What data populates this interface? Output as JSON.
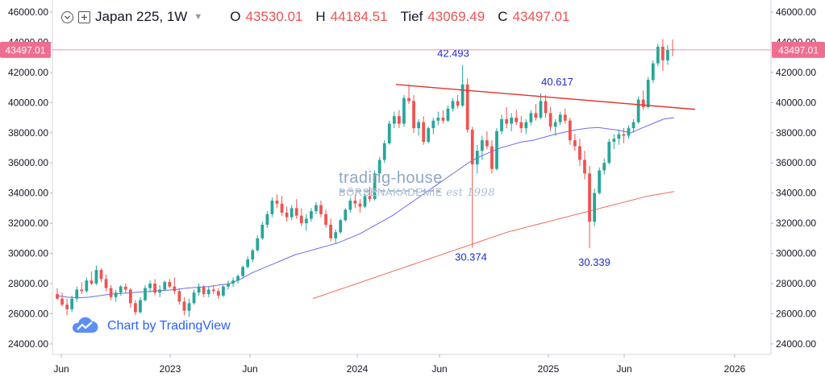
{
  "header": {
    "symbol": "Japan 225, 1W",
    "open_label": "O",
    "open": "43530.01",
    "high_label": "H",
    "high": "44184.51",
    "low_label": "Tief",
    "low": "43069.49",
    "close_label": "C",
    "close": "43497.01"
  },
  "branding": {
    "tv_text": "Chart by TradingView",
    "watermark_top": "trading-house",
    "watermark_bottom": "BÖRSENAKADEMIE",
    "watermark_est": "est 1998"
  },
  "colors": {
    "up": "#26a69a",
    "down": "#ef5350",
    "ma_short": "#6b6bf0",
    "ma_long": "#f06a5e",
    "trendline": "#e0342a",
    "annotation": "#1a2bd6",
    "price_tag": "#f06d90"
  },
  "chart_data": {
    "type": "candlestick",
    "price_tag": "43497.01",
    "y_ticks": [
      "46000.00",
      "44000.00",
      "42000.00",
      "40000.00",
      "38000.00",
      "36000.00",
      "34000.00",
      "32000.00",
      "30000.00",
      "28000.00",
      "26000.00",
      "24000.00"
    ],
    "ylim": [
      23300,
      46800
    ],
    "x_ticks": [
      "Jun",
      "2023",
      "Jun",
      "2024",
      "Jun",
      "2025",
      "Jun",
      "2026"
    ],
    "annotations": [
      {
        "label": "42.493",
        "value": 42493
      },
      {
        "label": "30.374",
        "value": 30374
      },
      {
        "label": "40.617",
        "value": 40617
      },
      {
        "label": "30.339",
        "value": 30339
      }
    ],
    "trendline": {
      "from": 41200,
      "to": 39550
    },
    "ma_short": [
      27200,
      27100,
      27050,
      27100,
      27200,
      27300,
      27350,
      27400,
      27450,
      27500,
      27550,
      27600,
      27700,
      27750,
      27800,
      27900,
      28000,
      28300,
      28700,
      29000,
      29300,
      29600,
      29900,
      30100,
      30300,
      30500,
      30700,
      31000,
      31300,
      31700,
      32100,
      32500,
      33000,
      33500,
      34000,
      34500,
      35000,
      35500,
      36000,
      36400,
      36700,
      37000,
      37200,
      37400,
      37500,
      37700,
      37900,
      38050,
      38200,
      38300,
      38350,
      38250,
      38150,
      38000,
      38300,
      38600,
      38900,
      39000
    ],
    "ma_long": [
      27000,
      27200,
      27400,
      27600,
      27800,
      28000,
      28200,
      28400,
      28600,
      28800,
      29000,
      29200,
      29400,
      29600,
      29800,
      30000,
      30200,
      30400,
      30600,
      30800,
      31000,
      31200,
      31400,
      31550,
      31700,
      31850,
      32000,
      32150,
      32300,
      32450,
      32600,
      32750,
      32900,
      33050,
      33200,
      33350,
      33500,
      33650,
      33800,
      33900,
      34000,
      34100
    ],
    "candles": [
      [
        27300,
        27700,
        26900,
        27000
      ],
      [
        27000,
        27400,
        26500,
        26600
      ],
      [
        26600,
        27000,
        25900,
        26300
      ],
      [
        26300,
        27200,
        26100,
        27000
      ],
      [
        27000,
        27800,
        26800,
        27600
      ],
      [
        27600,
        28100,
        27300,
        27500
      ],
      [
        27500,
        28400,
        27400,
        28200
      ],
      [
        28200,
        28800,
        27900,
        28000
      ],
      [
        28000,
        29200,
        27900,
        28900
      ],
      [
        28900,
        29000,
        28100,
        28300
      ],
      [
        28300,
        28600,
        27500,
        27700
      ],
      [
        27700,
        27900,
        26900,
        27100
      ],
      [
        27100,
        27600,
        26800,
        27400
      ],
      [
        27400,
        27900,
        27200,
        27800
      ],
      [
        27800,
        28000,
        27400,
        27600
      ],
      [
        27600,
        27700,
        26400,
        26700
      ],
      [
        26700,
        26900,
        25900,
        26100
      ],
      [
        26100,
        27100,
        26000,
        26900
      ],
      [
        26900,
        27900,
        26800,
        27700
      ],
      [
        27700,
        28200,
        27400,
        28000
      ],
      [
        28000,
        28300,
        27200,
        27400
      ],
      [
        27400,
        27900,
        27100,
        27600
      ],
      [
        27600,
        28200,
        27500,
        28100
      ],
      [
        28100,
        28300,
        27700,
        27800
      ],
      [
        27800,
        28400,
        27300,
        27500
      ],
      [
        27500,
        27700,
        26600,
        26800
      ],
      [
        26800,
        27100,
        25900,
        26200
      ],
      [
        26200,
        27000,
        25800,
        26700
      ],
      [
        26700,
        27600,
        26600,
        27400
      ],
      [
        27400,
        28000,
        27200,
        27800
      ],
      [
        27800,
        27900,
        27100,
        27300
      ],
      [
        27300,
        27800,
        27100,
        27600
      ],
      [
        27600,
        27900,
        27300,
        27500
      ],
      [
        27500,
        27700,
        27000,
        27200
      ],
      [
        27200,
        27900,
        27100,
        27800
      ],
      [
        27800,
        28200,
        27600,
        28000
      ],
      [
        28000,
        28400,
        27800,
        28200
      ],
      [
        28200,
        28600,
        28000,
        28500
      ],
      [
        28500,
        29200,
        28400,
        29100
      ],
      [
        29100,
        29800,
        29000,
        29600
      ],
      [
        29600,
        30300,
        29400,
        30200
      ],
      [
        30200,
        31200,
        30100,
        31000
      ],
      [
        31000,
        32100,
        30900,
        31900
      ],
      [
        31900,
        32800,
        31700,
        32600
      ],
      [
        32600,
        33700,
        32400,
        33500
      ],
      [
        33500,
        33900,
        33000,
        33300
      ],
      [
        33300,
        33800,
        32500,
        32700
      ],
      [
        32700,
        33100,
        32100,
        32400
      ],
      [
        32400,
        33200,
        32200,
        33000
      ],
      [
        33000,
        33600,
        32300,
        32500
      ],
      [
        32500,
        33000,
        31800,
        32000
      ],
      [
        32000,
        32600,
        31500,
        32300
      ],
      [
        32300,
        33000,
        32100,
        32800
      ],
      [
        32800,
        33400,
        32600,
        33200
      ],
      [
        33200,
        33500,
        32400,
        32600
      ],
      [
        32600,
        32900,
        31700,
        31900
      ],
      [
        31900,
        32300,
        30800,
        31000
      ],
      [
        31000,
        31600,
        30700,
        31400
      ],
      [
        31400,
        32300,
        31300,
        32200
      ],
      [
        32200,
        33000,
        32100,
        32900
      ],
      [
        32900,
        33700,
        32700,
        33500
      ],
      [
        33500,
        33900,
        33000,
        33300
      ],
      [
        33300,
        33600,
        32700,
        33100
      ],
      [
        33100,
        34000,
        33000,
        33800
      ],
      [
        33800,
        34400,
        33400,
        33600
      ],
      [
        33600,
        35500,
        33500,
        35300
      ],
      [
        35300,
        36400,
        35100,
        36200
      ],
      [
        36200,
        37500,
        36000,
        37300
      ],
      [
        37300,
        38800,
        37200,
        38600
      ],
      [
        38600,
        39400,
        38300,
        39100
      ],
      [
        39100,
        39500,
        38300,
        38600
      ],
      [
        38600,
        40500,
        38400,
        40300
      ],
      [
        40300,
        41200,
        39900,
        40100
      ],
      [
        40100,
        40500,
        38000,
        38300
      ],
      [
        38300,
        38900,
        37800,
        38700
      ],
      [
        38700,
        39100,
        37200,
        37400
      ],
      [
        37400,
        38400,
        37300,
        38300
      ],
      [
        38300,
        39000,
        37900,
        38800
      ],
      [
        38800,
        39400,
        38500,
        39000
      ],
      [
        39000,
        39500,
        38600,
        38800
      ],
      [
        38800,
        39800,
        38700,
        39600
      ],
      [
        39600,
        40300,
        39400,
        40100
      ],
      [
        40100,
        40500,
        39600,
        39800
      ],
      [
        39800,
        42493,
        39700,
        41200
      ],
      [
        41200,
        41600,
        38000,
        38200
      ],
      [
        38200,
        38400,
        30374,
        35900
      ],
      [
        35900,
        37200,
        35300,
        36800
      ],
      [
        36800,
        37800,
        36200,
        37500
      ],
      [
        37500,
        38100,
        36900,
        37100
      ],
      [
        37100,
        37500,
        35300,
        35600
      ],
      [
        35600,
        38300,
        35500,
        38100
      ],
      [
        38100,
        39200,
        37900,
        38900
      ],
      [
        38900,
        39700,
        38300,
        38600
      ],
      [
        38600,
        39300,
        38100,
        39000
      ],
      [
        39000,
        39500,
        38500,
        38700
      ],
      [
        38700,
        39100,
        38000,
        38300
      ],
      [
        38300,
        38900,
        37900,
        38700
      ],
      [
        38700,
        39500,
        38500,
        39300
      ],
      [
        39300,
        39900,
        38800,
        39000
      ],
      [
        39000,
        40617,
        38900,
        40100
      ],
      [
        40100,
        40500,
        39000,
        39300
      ],
      [
        39300,
        39700,
        38100,
        38400
      ],
      [
        38400,
        38900,
        37800,
        38700
      ],
      [
        38700,
        39400,
        38500,
        39200
      ],
      [
        39200,
        39600,
        38600,
        38800
      ],
      [
        38800,
        39000,
        37200,
        37500
      ],
      [
        37500,
        37900,
        36800,
        37100
      ],
      [
        37100,
        37600,
        35800,
        36200
      ],
      [
        36200,
        36800,
        34900,
        35300
      ],
      [
        35300,
        35800,
        30339,
        32100
      ],
      [
        32100,
        34300,
        31800,
        34000
      ],
      [
        34000,
        35700,
        33900,
        35500
      ],
      [
        35500,
        36300,
        35200,
        36000
      ],
      [
        36000,
        37600,
        35900,
        37400
      ],
      [
        37400,
        37900,
        36900,
        37600
      ],
      [
        37600,
        38200,
        37200,
        37900
      ],
      [
        37900,
        38300,
        37300,
        37800
      ],
      [
        37800,
        38500,
        37600,
        38300
      ],
      [
        38300,
        38900,
        38000,
        38700
      ],
      [
        38700,
        40400,
        38600,
        40200
      ],
      [
        40200,
        40800,
        39500,
        39700
      ],
      [
        39700,
        41700,
        39600,
        41500
      ],
      [
        41500,
        42800,
        41300,
        42600
      ],
      [
        42600,
        43900,
        42400,
        43700
      ],
      [
        43700,
        44200,
        42100,
        42800
      ],
      [
        42800,
        43800,
        42500,
        43500
      ],
      [
        43530,
        44184,
        43069,
        43497
      ]
    ]
  }
}
